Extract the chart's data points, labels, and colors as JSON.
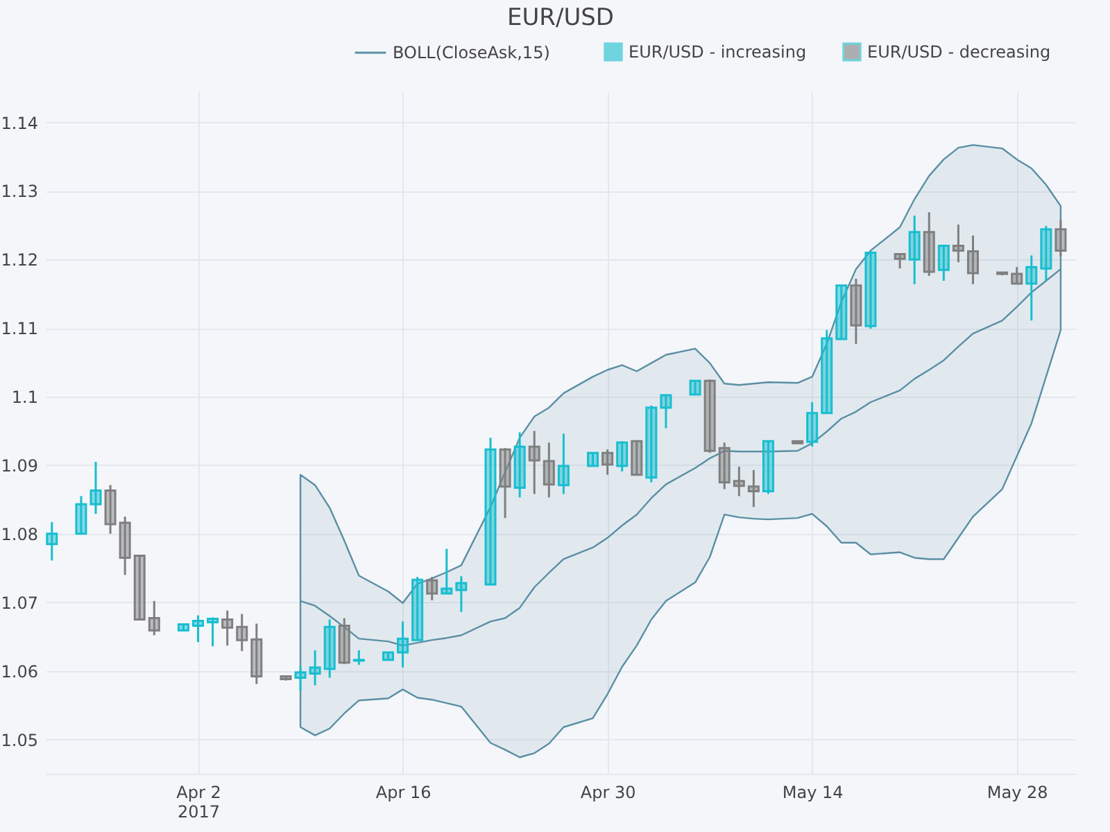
{
  "chart_data": {
    "type": "candlestick",
    "title": "EUR/USD",
    "xlim": [
      "2017-03-22T14:00",
      "2017-06-01T00:00"
    ],
    "xticks": [
      {
        "value": "2017-04-02",
        "label": "Apr 2\n2017"
      },
      {
        "value": "2017-04-16",
        "label": "Apr 16"
      },
      {
        "value": "2017-04-30",
        "label": "Apr 30"
      },
      {
        "value": "2017-05-14",
        "label": "May 14"
      },
      {
        "value": "2017-05-28",
        "label": "May 28"
      }
    ],
    "ylim": [
      1.045,
      1.1445
    ],
    "yticks": [
      1.05,
      1.06,
      1.07,
      1.08,
      1.09,
      {
        "value": 1.1,
        "label": "1.1"
      },
      1.11,
      1.12,
      1.13,
      1.14
    ],
    "grid": true,
    "legend": "top right",
    "series": [
      {
        "name": "BOLL(CloseAsk,15)",
        "type": "line",
        "color": "#5a8fa3",
        "x": [
          "2017-04-09",
          "2017-04-10",
          "2017-04-11",
          "2017-04-12",
          "2017-04-13",
          "2017-04-15",
          "2017-04-16",
          "2017-04-17",
          "2017-04-18",
          "2017-04-19",
          "2017-04-20",
          "2017-04-22",
          "2017-04-23",
          "2017-04-24",
          "2017-04-25",
          "2017-04-26",
          "2017-04-27",
          "2017-04-29",
          "2017-04-30",
          "2017-05-01",
          "2017-05-02",
          "2017-05-03",
          "2017-05-04",
          "2017-05-06",
          "2017-05-07",
          "2017-05-08",
          "2017-05-09",
          "2017-05-10",
          "2017-05-11",
          "2017-05-13",
          "2017-05-14",
          "2017-05-15",
          "2017-05-16",
          "2017-05-17",
          "2017-05-18",
          "2017-05-20",
          "2017-05-21",
          "2017-05-22",
          "2017-05-23",
          "2017-05-24",
          "2017-05-25",
          "2017-05-27",
          "2017-05-28",
          "2017-05-29",
          "2017-05-30",
          "2017-05-31"
        ],
        "values": [
          1.0702,
          1.0695,
          1.068,
          1.0664,
          1.0647,
          1.0643,
          1.0637,
          1.0641,
          1.0645,
          1.0648,
          1.0652,
          1.0672,
          1.0677,
          1.0692,
          1.0722,
          1.0743,
          1.0763,
          1.078,
          1.0794,
          1.0812,
          1.0828,
          1.0852,
          1.0872,
          1.0896,
          1.091,
          1.0921,
          1.092,
          1.092,
          1.092,
          1.0921,
          1.0932,
          1.0949,
          1.0968,
          1.0978,
          1.0992,
          1.1009,
          1.1026,
          1.1039,
          1.1053,
          1.1073,
          1.1092,
          1.1111,
          1.1131,
          1.1152,
          1.1169,
          1.1186
        ],
        "upper": [
          1.0886,
          1.0871,
          1.0838,
          1.079,
          1.0739,
          1.0716,
          1.0699,
          1.0727,
          1.0735,
          1.0744,
          1.0754,
          1.0839,
          1.089,
          1.094,
          1.0971,
          1.0984,
          1.1005,
          1.1029,
          1.1039,
          1.1046,
          1.1037,
          1.1049,
          1.1061,
          1.107,
          1.1049,
          1.1019,
          1.1017,
          1.1019,
          1.1021,
          1.102,
          1.1029,
          1.1077,
          1.1138,
          1.1186,
          1.1213,
          1.1247,
          1.1288,
          1.1322,
          1.1346,
          1.1363,
          1.1367,
          1.1362,
          1.1346,
          1.1333,
          1.1309,
          1.1278
        ],
        "lower": [
          1.0518,
          1.0506,
          1.0516,
          1.0538,
          1.0557,
          1.056,
          1.0573,
          1.0561,
          1.0558,
          1.0553,
          1.0548,
          1.0495,
          1.0485,
          1.0474,
          1.048,
          1.0494,
          1.0518,
          1.0531,
          1.0566,
          1.0606,
          1.0637,
          1.0675,
          1.0702,
          1.0729,
          1.0766,
          1.0828,
          1.0824,
          1.0822,
          1.0821,
          1.0823,
          1.0829,
          1.0811,
          1.0787,
          1.0787,
          1.077,
          1.0773,
          1.0765,
          1.0763,
          1.0763,
          1.0794,
          1.0825,
          1.0865,
          1.0913,
          1.0961,
          1.1029,
          1.1097
        ]
      },
      {
        "name": "EUR/USD - increasing",
        "type": "candlestick",
        "color": "#17becf",
        "x": [
          "2017-03-23",
          "2017-03-25",
          "2017-03-26",
          "2017-04-01",
          "2017-04-02",
          "2017-04-03",
          "2017-04-09",
          "2017-04-10",
          "2017-04-11",
          "2017-04-13",
          "2017-04-15",
          "2017-04-16",
          "2017-04-17",
          "2017-04-19",
          "2017-04-20",
          "2017-04-22",
          "2017-04-24",
          "2017-04-27",
          "2017-04-29",
          "2017-05-01",
          "2017-05-03",
          "2017-05-04",
          "2017-05-06",
          "2017-05-11",
          "2017-05-14",
          "2017-05-15",
          "2017-05-16",
          "2017-05-18",
          "2017-05-21",
          "2017-05-23",
          "2017-05-29",
          "2017-05-30"
        ],
        "ohlc": [
          [
            1.0785,
            1.0817,
            1.0761,
            1.08
          ],
          [
            1.08,
            1.0855,
            1.08,
            1.0843
          ],
          [
            1.0843,
            1.0905,
            1.0829,
            1.0863
          ],
          [
            1.0659,
            1.0668,
            1.0659,
            1.0668
          ],
          [
            1.0666,
            1.0681,
            1.0642,
            1.0673
          ],
          [
            1.0671,
            1.0678,
            1.0636,
            1.0676
          ],
          [
            1.059,
            1.0607,
            1.0571,
            1.0598
          ],
          [
            1.0596,
            1.063,
            1.0579,
            1.0605
          ],
          [
            1.0603,
            1.0675,
            1.059,
            1.0664
          ],
          [
            1.0615,
            1.063,
            1.0609,
            1.0616
          ],
          [
            1.0616,
            1.0627,
            1.0616,
            1.0627
          ],
          [
            1.0627,
            1.0672,
            1.0605,
            1.0647
          ],
          [
            1.0645,
            1.0737,
            1.0645,
            1.0733
          ],
          [
            1.0713,
            1.0778,
            1.0713,
            1.072
          ],
          [
            1.0718,
            1.0738,
            1.0686,
            1.0728
          ],
          [
            1.0726,
            1.094,
            1.0726,
            1.0923
          ],
          [
            1.0867,
            1.0948,
            1.0853,
            1.0927
          ],
          [
            1.0871,
            1.0946,
            1.0858,
            1.0899
          ],
          [
            1.0899,
            1.0918,
            1.0899,
            1.0918
          ],
          [
            1.0899,
            1.0935,
            1.0891,
            1.0933
          ],
          [
            1.0882,
            1.0987,
            1.0875,
            1.0984
          ],
          [
            1.0984,
            1.1002,
            1.0954,
            1.1002
          ],
          [
            1.1003,
            1.1023,
            1.1003,
            1.1023
          ],
          [
            1.0862,
            1.0935,
            1.0858,
            1.0935
          ],
          [
            1.0934,
            1.0992,
            1.0927,
            1.0976
          ],
          [
            1.0976,
            1.1097,
            1.0976,
            1.1085
          ],
          [
            1.1084,
            1.1162,
            1.1084,
            1.1162
          ],
          [
            1.1103,
            1.1212,
            1.1099,
            1.121
          ],
          [
            1.12,
            1.1264,
            1.1164,
            1.124
          ],
          [
            1.1185,
            1.122,
            1.1169,
            1.122
          ],
          [
            1.1165,
            1.1206,
            1.1111,
            1.1189
          ],
          [
            1.1187,
            1.1249,
            1.1169,
            1.1244
          ]
        ]
      },
      {
        "name": "EUR/USD - decreasing",
        "type": "candlestick",
        "color": "#7f7f7f",
        "x": [
          "2017-03-27",
          "2017-03-28",
          "2017-03-29",
          "2017-03-30",
          "2017-04-04",
          "2017-04-05",
          "2017-04-06",
          "2017-04-08",
          "2017-04-12",
          "2017-04-18",
          "2017-04-23",
          "2017-04-25",
          "2017-04-26",
          "2017-04-30",
          "2017-05-02",
          "2017-05-07",
          "2017-05-08",
          "2017-05-09",
          "2017-05-10",
          "2017-05-13",
          "2017-05-17",
          "2017-05-20",
          "2017-05-22",
          "2017-05-24",
          "2017-05-25",
          "2017-05-27",
          "2017-05-28",
          "2017-05-31"
        ],
        "ohlc": [
          [
            1.0863,
            1.0871,
            1.08,
            1.0814
          ],
          [
            1.0816,
            1.0825,
            1.074,
            1.0765
          ],
          [
            1.0768,
            1.0768,
            1.0675,
            1.0675
          ],
          [
            1.0677,
            1.0702,
            1.0652,
            1.0659
          ],
          [
            1.0675,
            1.0688,
            1.0637,
            1.0663
          ],
          [
            1.0664,
            1.0683,
            1.0629,
            1.0645
          ],
          [
            1.0646,
            1.0669,
            1.0581,
            1.0592
          ],
          [
            1.0592,
            1.0592,
            1.0586,
            1.0588
          ],
          [
            1.0666,
            1.0677,
            1.061,
            1.0612
          ],
          [
            1.0732,
            1.0737,
            1.0703,
            1.0713
          ],
          [
            1.0923,
            1.0925,
            1.0823,
            1.0869
          ],
          [
            1.0927,
            1.095,
            1.0858,
            1.0907
          ],
          [
            1.0906,
            1.0933,
            1.0853,
            1.0872
          ],
          [
            1.0918,
            1.0923,
            1.0886,
            1.0901
          ],
          [
            1.0935,
            1.0935,
            1.0886,
            1.0886
          ],
          [
            1.1023,
            1.1025,
            1.0918,
            1.0921
          ],
          [
            1.0925,
            1.0933,
            1.0865,
            1.0875
          ],
          [
            1.0877,
            1.0898,
            1.0855,
            1.087
          ],
          [
            1.0869,
            1.0893,
            1.0839,
            1.0862
          ],
          [
            1.0935,
            1.0935,
            1.0932,
            1.0932
          ],
          [
            1.1162,
            1.1172,
            1.1077,
            1.1104
          ],
          [
            1.1208,
            1.1208,
            1.1187,
            1.1201
          ],
          [
            1.124,
            1.1269,
            1.1176,
            1.1182
          ],
          [
            1.122,
            1.1251,
            1.1196,
            1.1213
          ],
          [
            1.1212,
            1.1235,
            1.1164,
            1.118
          ],
          [
            1.1181,
            1.1181,
            1.1177,
            1.1179
          ],
          [
            1.1179,
            1.1189,
            1.1164,
            1.1165
          ],
          [
            1.1244,
            1.1258,
            1.1205,
            1.1213
          ]
        ]
      }
    ]
  }
}
